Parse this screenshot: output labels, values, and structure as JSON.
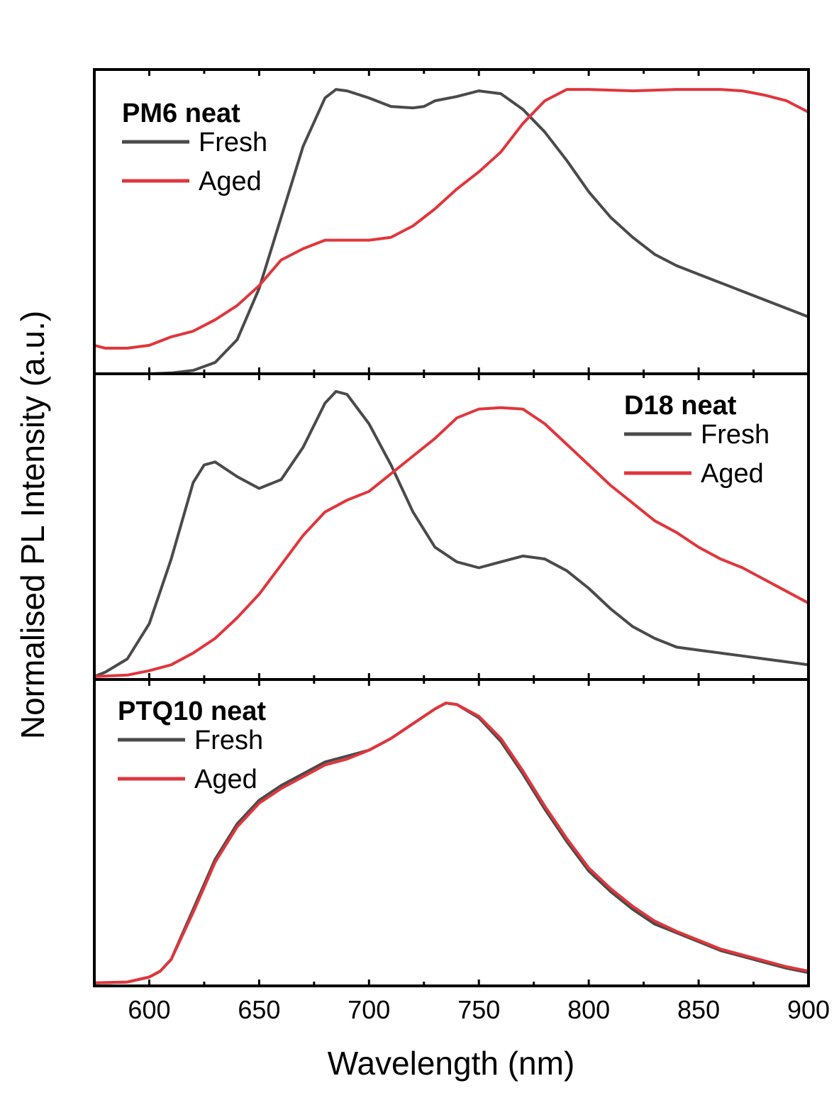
{
  "chart_data": {
    "type": "line",
    "xlabel": "Wavelength (nm)",
    "ylabel": "Normalised PL Intensity (a.u.)",
    "xlim": [
      575,
      900
    ],
    "x_ticks": [
      600,
      650,
      700,
      750,
      800,
      850,
      900
    ],
    "y_ticks_labeled": false,
    "grid": false,
    "colors": {
      "Fresh": "#4a4a4a",
      "Aged": "#e0363c"
    },
    "panels": [
      {
        "title": "PM6 neat",
        "legend": [
          "Fresh",
          "Aged"
        ],
        "legend_position": "top-left",
        "ylim": [
          0,
          1.07
        ],
        "series": [
          {
            "name": "Fresh",
            "x": [
              575,
              600,
              610,
              620,
              630,
              640,
              650,
              660,
              670,
              680,
              685,
              690,
              700,
              710,
              720,
              725,
              730,
              740,
              750,
              760,
              770,
              780,
              790,
              800,
              810,
              820,
              830,
              840,
              850,
              860,
              870,
              880,
              890,
              900
            ],
            "y": [
              0.0,
              0.0,
              0.003,
              0.012,
              0.04,
              0.12,
              0.3,
              0.55,
              0.8,
              0.97,
              1.0,
              0.995,
              0.97,
              0.94,
              0.935,
              0.94,
              0.96,
              0.975,
              0.995,
              0.985,
              0.93,
              0.85,
              0.75,
              0.64,
              0.55,
              0.48,
              0.42,
              0.38,
              0.35,
              0.32,
              0.29,
              0.26,
              0.23,
              0.2
            ]
          },
          {
            "name": "Aged",
            "x": [
              575,
              580,
              590,
              600,
              610,
              620,
              630,
              640,
              650,
              660,
              670,
              680,
              690,
              700,
              710,
              720,
              730,
              740,
              750,
              760,
              770,
              780,
              790,
              800,
              820,
              840,
              860,
              870,
              880,
              890,
              900
            ],
            "y": [
              0.1,
              0.09,
              0.09,
              0.1,
              0.13,
              0.15,
              0.19,
              0.24,
              0.31,
              0.4,
              0.44,
              0.47,
              0.47,
              0.47,
              0.48,
              0.52,
              0.58,
              0.65,
              0.71,
              0.78,
              0.88,
              0.96,
              1.0,
              1.0,
              0.995,
              1.0,
              1.0,
              0.995,
              0.98,
              0.96,
              0.92
            ]
          }
        ]
      },
      {
        "title": "D18 neat",
        "legend": [
          "Fresh",
          "Aged"
        ],
        "legend_position": "top-right",
        "ylim": [
          -0.01,
          1.03
        ],
        "series": [
          {
            "name": "Fresh",
            "x": [
              575,
              580,
              590,
              600,
              610,
              620,
              625,
              630,
              640,
              650,
              660,
              670,
              680,
              685,
              690,
              700,
              710,
              720,
              730,
              740,
              750,
              760,
              770,
              780,
              790,
              800,
              810,
              820,
              830,
              840,
              850,
              860,
              870,
              880,
              890,
              900
            ],
            "y": [
              0.0,
              0.015,
              0.06,
              0.18,
              0.4,
              0.66,
              0.72,
              0.73,
              0.68,
              0.64,
              0.67,
              0.78,
              0.93,
              0.97,
              0.96,
              0.86,
              0.72,
              0.56,
              0.44,
              0.39,
              0.37,
              0.39,
              0.41,
              0.4,
              0.36,
              0.3,
              0.23,
              0.17,
              0.13,
              0.1,
              0.09,
              0.08,
              0.07,
              0.06,
              0.05,
              0.04
            ]
          },
          {
            "name": "Aged",
            "x": [
              575,
              590,
              600,
              610,
              620,
              630,
              640,
              650,
              660,
              670,
              680,
              690,
              700,
              710,
              720,
              730,
              740,
              750,
              760,
              770,
              780,
              790,
              800,
              810,
              820,
              830,
              840,
              850,
              860,
              870,
              880,
              890,
              900
            ],
            "y": [
              0.0,
              0.005,
              0.02,
              0.04,
              0.08,
              0.13,
              0.2,
              0.28,
              0.38,
              0.48,
              0.56,
              0.6,
              0.63,
              0.69,
              0.75,
              0.81,
              0.88,
              0.91,
              0.915,
              0.91,
              0.86,
              0.79,
              0.72,
              0.65,
              0.59,
              0.53,
              0.49,
              0.44,
              0.4,
              0.37,
              0.33,
              0.29,
              0.25
            ]
          }
        ]
      },
      {
        "title": "PTQ10 neat",
        "legend": [
          "Fresh",
          "Aged"
        ],
        "legend_position": "top-left",
        "ylim": [
          -0.01,
          1.03
        ],
        "series": [
          {
            "name": "Fresh",
            "x": [
              575,
              590,
              600,
              605,
              610,
              620,
              630,
              640,
              650,
              660,
              670,
              680,
              690,
              700,
              710,
              720,
              730,
              735,
              740,
              750,
              760,
              770,
              780,
              790,
              800,
              810,
              820,
              830,
              840,
              850,
              860,
              870,
              880,
              890,
              900
            ],
            "y": [
              0.0,
              0.003,
              0.02,
              0.04,
              0.08,
              0.25,
              0.42,
              0.54,
              0.62,
              0.67,
              0.71,
              0.75,
              0.77,
              0.79,
              0.83,
              0.88,
              0.93,
              0.95,
              0.945,
              0.9,
              0.82,
              0.71,
              0.59,
              0.48,
              0.38,
              0.31,
              0.25,
              0.2,
              0.17,
              0.14,
              0.11,
              0.09,
              0.07,
              0.05,
              0.035
            ]
          },
          {
            "name": "Aged",
            "x": [
              575,
              590,
              600,
              605,
              610,
              620,
              630,
              640,
              650,
              660,
              670,
              680,
              690,
              700,
              710,
              720,
              730,
              735,
              740,
              750,
              760,
              770,
              780,
              790,
              800,
              810,
              820,
              830,
              840,
              850,
              860,
              870,
              880,
              890,
              900
            ],
            "y": [
              0.0,
              0.003,
              0.02,
              0.04,
              0.08,
              0.24,
              0.41,
              0.53,
              0.61,
              0.66,
              0.7,
              0.74,
              0.76,
              0.79,
              0.83,
              0.88,
              0.93,
              0.95,
              0.945,
              0.905,
              0.83,
              0.72,
              0.6,
              0.49,
              0.39,
              0.32,
              0.26,
              0.21,
              0.175,
              0.145,
              0.115,
              0.095,
              0.075,
              0.055,
              0.04
            ]
          }
        ]
      }
    ]
  }
}
